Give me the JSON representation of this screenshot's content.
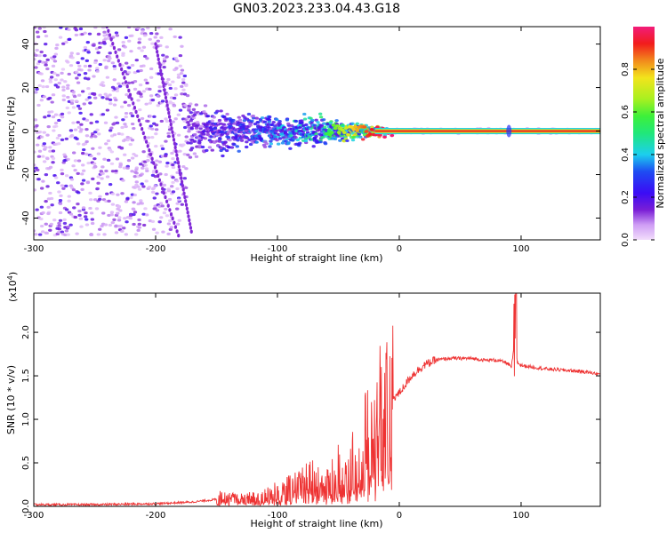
{
  "figure": {
    "title": "GN03.2023.233.04.43.G18"
  },
  "chart_data": [
    {
      "type": "heatmap",
      "xlabel": "Height of straight line (km)",
      "ylabel": "Frequency (Hz)",
      "xlim": [
        -300,
        165
      ],
      "ylim": [
        -50,
        48
      ],
      "x_ticks": [
        "-300",
        "-200",
        "-100",
        "0",
        "100"
      ],
      "x_tick_values": [
        -300,
        -200,
        -100,
        0,
        100
      ],
      "y_ticks": [
        "-40",
        "-20",
        "0",
        "20",
        "40"
      ],
      "y_tick_values": [
        -40,
        -20,
        0,
        20,
        40
      ],
      "colorbar": {
        "label": "Normalized spectral amplitude",
        "range": [
          0,
          1
        ],
        "ticks": [
          "0.0",
          "0.2",
          "0.4",
          "0.6",
          "0.8"
        ],
        "tick_values": [
          0.0,
          0.2,
          0.4,
          0.6,
          0.8
        ],
        "colormap": [
          "#f2ddfb",
          "#cf9ef5",
          "#7a1fd6",
          "#3b0cf5",
          "#1e4cf2",
          "#1ccfee",
          "#20e87a",
          "#3df03a",
          "#a8f020",
          "#f2e41c",
          "#f28a1c",
          "#f21c1c",
          "#f21c7a"
        ]
      },
      "description_points": [
        {
          "x": -300,
          "spread_hz": 48,
          "amplitude": 0.12
        },
        {
          "x": -180,
          "spread_hz": 48,
          "amplitude": 0.1
        },
        {
          "x": -170,
          "spread_hz": 15,
          "amplitude": 0.2
        },
        {
          "x": -120,
          "spread_hz": 10,
          "amplitude": 0.3
        },
        {
          "x": -60,
          "spread_hz": 8,
          "amplitude": 0.45
        },
        {
          "x": -20,
          "spread_hz": 3,
          "amplitude": 0.85
        },
        {
          "x": 0,
          "spread_hz": 1.5,
          "amplitude": 0.95
        },
        {
          "x": 90,
          "spread_hz": 1.5,
          "amplitude": 0.95
        },
        {
          "x": 165,
          "spread_hz": 1.5,
          "amplitude": 0.95
        }
      ]
    },
    {
      "type": "line",
      "xlabel": "Height of straight line (km)",
      "ylabel": "SNR (10 * v/v)",
      "multiplier": "(x10",
      "multiplier_exp": "4",
      "multiplier_close": ")",
      "xlim": [
        -300,
        165
      ],
      "ylim": [
        0,
        2.45
      ],
      "x_ticks": [
        "-300",
        "-200",
        "-100",
        "0",
        "100"
      ],
      "x_tick_values": [
        -300,
        -200,
        -100,
        0,
        100
      ],
      "y_ticks": [
        "0.0",
        "0.5",
        "1.0",
        "1.5",
        "2.0"
      ],
      "y_tick_values": [
        0.0,
        0.5,
        1.0,
        1.5,
        2.0
      ],
      "color": "#ee3333",
      "series": [
        {
          "x": [
            -300,
            -250,
            -200,
            -170,
            -150,
            -145,
            -140,
            -120,
            -100,
            -80,
            -70,
            -60,
            -50,
            -45,
            -40,
            -35,
            -30,
            -25,
            -20,
            -15,
            -10,
            -5,
            0,
            10,
            20,
            30,
            40,
            50,
            60,
            70,
            80,
            88,
            92,
            95,
            97,
            100,
            110,
            120,
            130,
            140,
            150,
            160,
            165
          ],
          "y": [
            0.02,
            0.02,
            0.03,
            0.05,
            0.08,
            0.2,
            0.12,
            0.12,
            0.2,
            0.3,
            0.4,
            0.25,
            0.45,
            0.3,
            0.45,
            0.7,
            0.85,
            0.8,
            1.0,
            1.2,
            1.2,
            1.25,
            1.3,
            1.5,
            1.62,
            1.68,
            1.7,
            1.7,
            1.7,
            1.68,
            1.68,
            1.65,
            1.6,
            1.9,
            1.65,
            1.62,
            1.6,
            1.58,
            1.57,
            1.56,
            1.55,
            1.53,
            1.52
          ]
        }
      ]
    }
  ]
}
